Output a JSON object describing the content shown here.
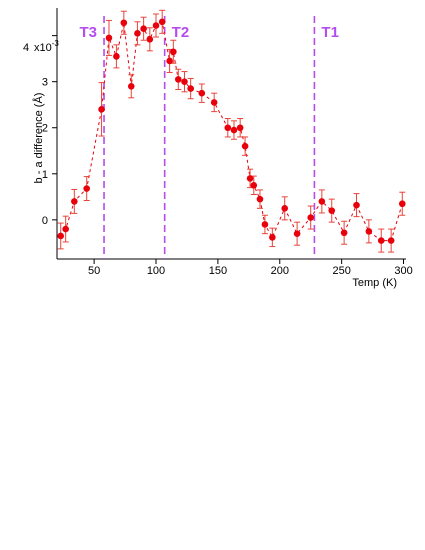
{
  "chart_data": {
    "type": "scatter",
    "xlabel": "Temp (K)",
    "ylabel": "b - a difference (Å)",
    "y_scale_label": "x10",
    "y_scale_exp": "-3",
    "xlim": [
      20,
      302
    ],
    "ylim": [
      -0.85,
      4.6
    ],
    "xticks": [
      50,
      100,
      150,
      200,
      250,
      300
    ],
    "yticks": [
      0,
      1,
      2,
      3,
      4
    ],
    "ytick_labels": [
      "0",
      "1",
      "2",
      "3",
      "4"
    ],
    "grid": false,
    "series": [
      {
        "marker": "filled-circle",
        "line": "dashed",
        "color": "#e8000b",
        "error_color": "#e8443a",
        "points": [
          {
            "x": 23,
            "y": -0.35,
            "err": 0.28
          },
          {
            "x": 27,
            "y": -0.2,
            "err": 0.28
          },
          {
            "x": 34,
            "y": 0.4,
            "err": 0.26
          },
          {
            "x": 44,
            "y": 0.68,
            "err": 0.26
          },
          {
            "x": 56,
            "y": 2.4,
            "err": 0.58
          },
          {
            "x": 62,
            "y": 3.95,
            "err": 0.38
          },
          {
            "x": 68,
            "y": 3.55,
            "err": 0.25
          },
          {
            "x": 74,
            "y": 4.28,
            "err": 0.25
          },
          {
            "x": 80,
            "y": 2.9,
            "err": 0.25
          },
          {
            "x": 85,
            "y": 4.05,
            "err": 0.25
          },
          {
            "x": 90,
            "y": 4.15,
            "err": 0.25
          },
          {
            "x": 95,
            "y": 3.92,
            "err": 0.25
          },
          {
            "x": 100,
            "y": 4.22,
            "err": 0.25
          },
          {
            "x": 105,
            "y": 4.3,
            "err": 0.25
          },
          {
            "x": 111,
            "y": 3.45,
            "err": 0.25
          },
          {
            "x": 114,
            "y": 3.65,
            "err": 0.25
          },
          {
            "x": 118,
            "y": 3.05,
            "err": 0.22
          },
          {
            "x": 123,
            "y": 3.0,
            "err": 0.22
          },
          {
            "x": 128,
            "y": 2.85,
            "err": 0.22
          },
          {
            "x": 137,
            "y": 2.75,
            "err": 0.2
          },
          {
            "x": 147,
            "y": 2.55,
            "err": 0.2
          },
          {
            "x": 158,
            "y": 2.0,
            "err": 0.2
          },
          {
            "x": 163,
            "y": 1.95,
            "err": 0.2
          },
          {
            "x": 168,
            "y": 2.0,
            "err": 0.2
          },
          {
            "x": 172,
            "y": 1.6,
            "err": 0.2
          },
          {
            "x": 176,
            "y": 0.9,
            "err": 0.2
          },
          {
            "x": 179,
            "y": 0.75,
            "err": 0.2
          },
          {
            "x": 184,
            "y": 0.45,
            "err": 0.2
          },
          {
            "x": 188,
            "y": -0.1,
            "err": 0.2
          },
          {
            "x": 194,
            "y": -0.38,
            "err": 0.2
          },
          {
            "x": 204,
            "y": 0.25,
            "err": 0.25
          },
          {
            "x": 214,
            "y": -0.3,
            "err": 0.25
          },
          {
            "x": 225,
            "y": 0.05,
            "err": 0.25
          },
          {
            "x": 234,
            "y": 0.4,
            "err": 0.25
          },
          {
            "x": 242,
            "y": 0.2,
            "err": 0.25
          },
          {
            "x": 252,
            "y": -0.28,
            "err": 0.25
          },
          {
            "x": 262,
            "y": 0.32,
            "err": 0.25
          },
          {
            "x": 272,
            "y": -0.25,
            "err": 0.25
          },
          {
            "x": 282,
            "y": -0.45,
            "err": 0.25
          },
          {
            "x": 290,
            "y": -0.45,
            "err": 0.25
          },
          {
            "x": 299,
            "y": 0.35,
            "err": 0.25
          }
        ]
      }
    ],
    "vlines": [
      {
        "x": 58,
        "label": "T3",
        "label_side": "left"
      },
      {
        "x": 107,
        "label": "T2",
        "label_side": "right"
      },
      {
        "x": 228,
        "label": "T1",
        "label_side": "right"
      }
    ],
    "vline_color": "#b44cf0"
  }
}
